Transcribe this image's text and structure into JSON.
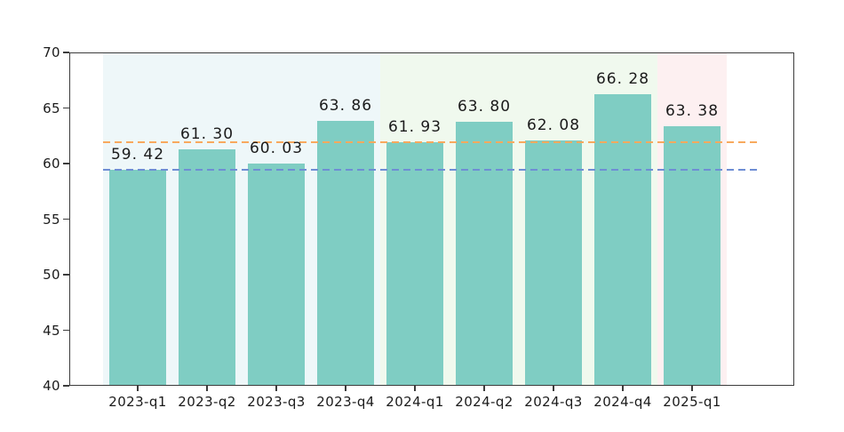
{
  "figure": {
    "background": "#ffffff"
  },
  "chart_data": {
    "type": "bar",
    "title": "",
    "xlabel": "",
    "ylabel": "",
    "categories": [
      "2023-q1",
      "2023-q2",
      "2023-q3",
      "2023-q4",
      "2024-q1",
      "2024-q2",
      "2024-q3",
      "2024-q4",
      "2025-q1"
    ],
    "values": [
      59.42,
      61.3,
      60.03,
      63.86,
      61.93,
      63.8,
      62.08,
      66.28,
      63.38
    ],
    "bar_labels": [
      "59. 42",
      "61. 30",
      "60. 03",
      "63. 86",
      "61. 93",
      "63. 80",
      "62. 08",
      "66. 28",
      "63. 38"
    ],
    "bar_color": "#7fcdc3",
    "ylim": [
      40,
      70
    ],
    "yticks": [
      40,
      45,
      50,
      55,
      60,
      65,
      70
    ],
    "grid": false,
    "legend": null,
    "background_bands": [
      {
        "name": "band-year-2023",
        "from_index": 0,
        "to_index": 3,
        "color": "#eef7f9"
      },
      {
        "name": "band-year-2024",
        "from_index": 4,
        "to_index": 7,
        "color": "#f0f9ee"
      },
      {
        "name": "band-year-2025",
        "from_index": 8,
        "to_index": 8,
        "color": "#fdf0f1"
      }
    ],
    "reference_lines": [
      {
        "name": "refline-2023-baseline",
        "value": 59.42,
        "color": "#6f8ed4",
        "style": "dashed"
      },
      {
        "name": "refline-2024-baseline",
        "value": 61.93,
        "color": "#f8a95e",
        "style": "dashed"
      }
    ],
    "axis_color": "#3c3c3c",
    "text_color": "#1b1b1b"
  }
}
